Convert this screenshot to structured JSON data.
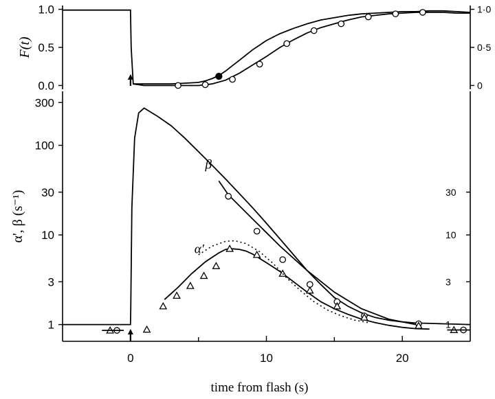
{
  "chart_data": [
    {
      "panel": "top",
      "type": "line",
      "ylabel": "F(t)",
      "ylim": [
        -0.05,
        1.05
      ],
      "xlim": [
        -5,
        25
      ],
      "y_ticks_left": [
        "0.0",
        "0.5",
        "1.0"
      ],
      "y_tick_values_left": [
        0.0,
        0.5,
        1.0
      ],
      "y_ticks_right": [
        "0",
        "0·5",
        "1·0"
      ],
      "y_tick_values_right": [
        0.0,
        0.5,
        1.0
      ],
      "flash_arrow_t": 0,
      "series": [
        {
          "style": "line",
          "x": [
            -5,
            -4,
            -3,
            -2,
            -1,
            0,
            0.05,
            0.2,
            1,
            2,
            3,
            4,
            5,
            5.5,
            6,
            6.5,
            7,
            7.5,
            8,
            8.5,
            9,
            9.5,
            10,
            11,
            12,
            13,
            14,
            15,
            16,
            17,
            18,
            19,
            20,
            21,
            22,
            23,
            24,
            25
          ],
          "y": [
            0.99,
            0.99,
            0.99,
            0.99,
            0.99,
            0.99,
            0.5,
            0.02,
            0.02,
            0.02,
            0.02,
            0.03,
            0.04,
            0.06,
            0.09,
            0.13,
            0.19,
            0.26,
            0.33,
            0.4,
            0.47,
            0.53,
            0.59,
            0.68,
            0.75,
            0.81,
            0.86,
            0.89,
            0.92,
            0.94,
            0.95,
            0.96,
            0.97,
            0.97,
            0.98,
            0.98,
            0.97,
            0.96
          ]
        },
        {
          "style": "line-with-open-circles",
          "x": [
            0.2,
            1,
            2,
            3,
            4,
            5,
            6,
            7,
            8,
            9,
            10,
            11,
            12,
            13,
            14,
            15,
            16,
            17,
            18,
            19,
            20,
            21,
            22,
            23,
            24,
            25
          ],
          "y": [
            0.02,
            0.0,
            0.0,
            0.0,
            0.0,
            0.0,
            0.02,
            0.07,
            0.16,
            0.27,
            0.38,
            0.5,
            0.6,
            0.69,
            0.76,
            0.81,
            0.86,
            0.9,
            0.92,
            0.94,
            0.95,
            0.96,
            0.96,
            0.96,
            0.95,
            0.95
          ],
          "markers_x": [
            3.5,
            5.5,
            7.5,
            9.5,
            11.5,
            13.5,
            15.5,
            17.5,
            19.5,
            21.5
          ],
          "markers_y": [
            0.0,
            0.01,
            0.08,
            0.28,
            0.55,
            0.72,
            0.81,
            0.9,
            0.94,
            0.96
          ]
        },
        {
          "style": "filled-circle",
          "markers_x": [
            6.5
          ],
          "markers_y": [
            0.12
          ]
        }
      ]
    },
    {
      "panel": "bottom",
      "type": "line",
      "scale": "log",
      "xlabel": "time from flash (s)",
      "ylabel": "α', β (s⁻¹)",
      "ylim": [
        0.65,
        400
      ],
      "xlim": [
        -5,
        25
      ],
      "x_ticks": [
        "0",
        "10",
        "20"
      ],
      "x_tick_values": [
        0,
        10,
        20
      ],
      "x_minor_tick_values": [
        5,
        15
      ],
      "y_ticks_left": [
        "1",
        "3",
        "10",
        "30",
        "100",
        "300"
      ],
      "y_tick_values_left": [
        1,
        3,
        10,
        30,
        100,
        300
      ],
      "y_ticks_right": [
        "1",
        "3",
        "10",
        "30"
      ],
      "y_tick_values_right": [
        1,
        3,
        10,
        30
      ],
      "flash_arrow_t": 0,
      "annotations": [
        "β",
        "α′"
      ],
      "series": [
        {
          "label": "β",
          "style": "line",
          "x": [
            -5,
            0,
            0.02,
            0.1,
            0.3,
            0.6,
            1,
            2,
            3,
            4,
            5,
            6,
            7,
            8,
            9,
            10,
            11,
            12,
            13,
            14,
            15,
            16,
            17,
            18,
            19,
            20,
            21,
            22,
            23,
            24,
            25
          ],
          "y": [
            1,
            1,
            1.5,
            20,
            120,
            230,
            260,
            210,
            165,
            120,
            85,
            60,
            42,
            29,
            20,
            13.5,
            9,
            6,
            4,
            2.8,
            2.0,
            1.6,
            1.35,
            1.2,
            1.12,
            1.07,
            1.04,
            1.03,
            1.02,
            1.01,
            1.0
          ]
        },
        {
          "label": "fit-circles",
          "style": "line-with-open-circles",
          "x": [
            6.5,
            7.2,
            9.0,
            11.0,
            13.0,
            15.0,
            17.0,
            19.0,
            21.0
          ],
          "y": [
            40,
            28,
            15,
            7.5,
            4.0,
            2.3,
            1.5,
            1.15,
            1.0
          ],
          "markers_x": [
            7.2,
            9.3,
            11.2,
            13.2,
            15.2,
            17.2,
            21.2,
            24.5,
            -1.0
          ],
          "markers_y": [
            27,
            11,
            5.3,
            2.8,
            1.8,
            1.25,
            1.02,
            0.87,
            0.86
          ]
        },
        {
          "label": "α′",
          "style": "line-with-open-triangles",
          "x": [
            2.5,
            3.5,
            4.5,
            5.5,
            6.5,
            7.0,
            7.5,
            8.0,
            8.5,
            9.0,
            10.0,
            11.0,
            12.0,
            13.0,
            14.0,
            15.0,
            16.0,
            17.0,
            18.0,
            19.0,
            20.0,
            21.0,
            22.0
          ],
          "y": [
            1.9,
            2.6,
            3.7,
            5.0,
            6.3,
            6.9,
            7.0,
            6.9,
            6.6,
            6.1,
            4.9,
            3.9,
            3.0,
            2.3,
            1.8,
            1.5,
            1.3,
            1.15,
            1.05,
            0.98,
            0.93,
            0.9,
            0.89
          ],
          "markers_x": [
            1.2,
            2.4,
            3.4,
            4.4,
            5.4,
            6.3,
            7.3,
            9.3,
            11.2,
            13.2,
            15.2,
            17.2,
            21.2,
            23.8,
            -1.5
          ],
          "markers_y": [
            0.88,
            1.6,
            2.1,
            2.7,
            3.5,
            4.5,
            7.0,
            6.0,
            3.7,
            2.4,
            1.6,
            1.2,
            0.97,
            0.87,
            0.86
          ]
        },
        {
          "label": "dotted",
          "style": "dotted",
          "x": [
            5.0,
            6.0,
            7.0,
            7.7,
            8.5,
            9.5,
            10.5,
            11.5,
            12.5,
            13.5,
            14.5,
            15.5,
            16.5,
            17.5
          ],
          "y": [
            6.0,
            7.5,
            8.5,
            8.6,
            8.0,
            6.5,
            4.8,
            3.3,
            2.4,
            1.8,
            1.45,
            1.25,
            1.12,
            1.05
          ]
        }
      ]
    }
  ]
}
